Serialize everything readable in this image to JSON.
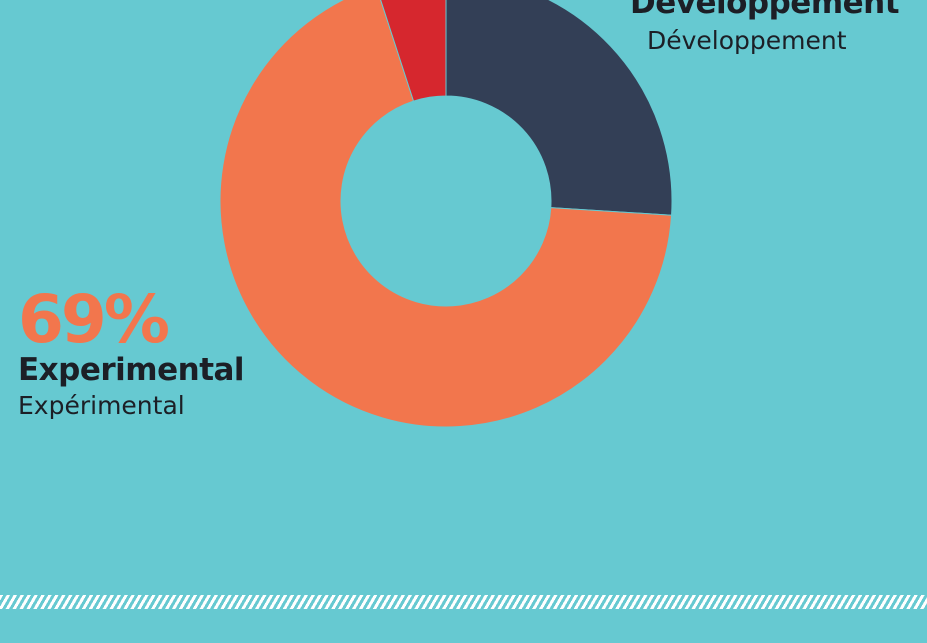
{
  "colors": {
    "background": "#66c9d1",
    "experimental": "#f2764d",
    "developpement": "#333f56",
    "third_segment": "#d6272e",
    "text_dark": "#1c1f26"
  },
  "chart_data": {
    "type": "pie",
    "variant": "donut",
    "slices": [
      {
        "name": "Developpement",
        "value": 26,
        "color": "#333f56"
      },
      {
        "name": "Experimental",
        "value": 69,
        "color": "#f2764d"
      },
      {
        "name": "",
        "value": 5,
        "color": "#d6272e"
      }
    ],
    "start_angle_deg": 0,
    "direction": "clockwise"
  },
  "labels": {
    "experimental": {
      "percent": "69%",
      "name_en": "Experimental",
      "name_fr": "Expérimental"
    },
    "developpement": {
      "name_en": "Developpement",
      "name_fr": "Développement"
    }
  }
}
